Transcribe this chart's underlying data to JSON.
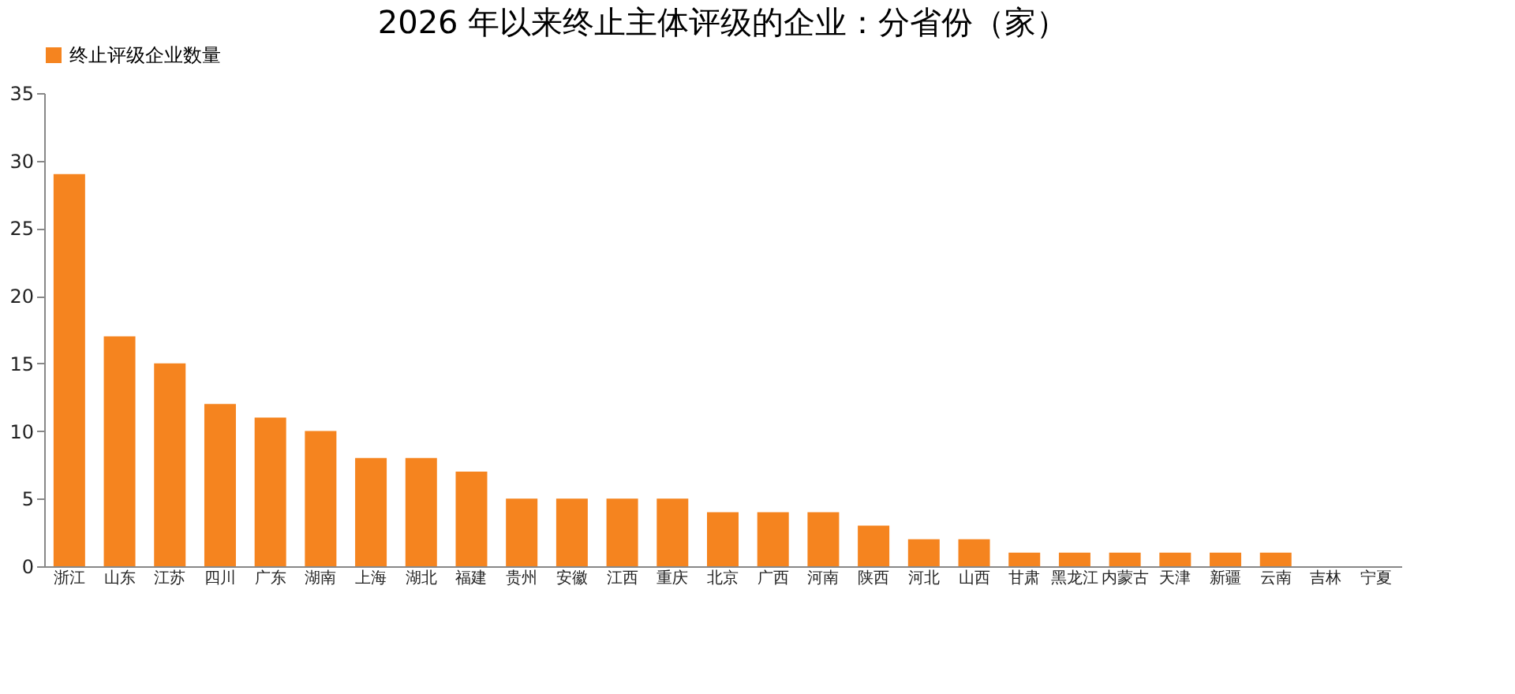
{
  "chart_data": {
    "type": "bar",
    "title": "2026 年以来终止主体评级的企业：分省份（家）",
    "categories": [
      "浙江",
      "山东",
      "江苏",
      "四川",
      "广东",
      "湖南",
      "上海",
      "湖北",
      "福建",
      "贵州",
      "安徽",
      "江西",
      "重庆",
      "北京",
      "广西",
      "河南",
      "陕西",
      "河北",
      "山西",
      "甘肃",
      "黑龙江",
      "内蒙古",
      "天津",
      "新疆",
      "云南",
      "吉林",
      "宁夏"
    ],
    "series": [
      {
        "name": "终止评级企业数量",
        "color": "#f5841f",
        "values": [
          29,
          17,
          15,
          12,
          11,
          10,
          8,
          8,
          7,
          5,
          5,
          5,
          5,
          4,
          4,
          4,
          3,
          2,
          2,
          1,
          1,
          1,
          1,
          1,
          1,
          0,
          0
        ]
      }
    ],
    "ylim": [
      0,
      35
    ],
    "yticks": [
      0,
      5,
      10,
      15,
      20,
      25,
      30,
      35
    ],
    "grid": false,
    "legend": "top"
  }
}
